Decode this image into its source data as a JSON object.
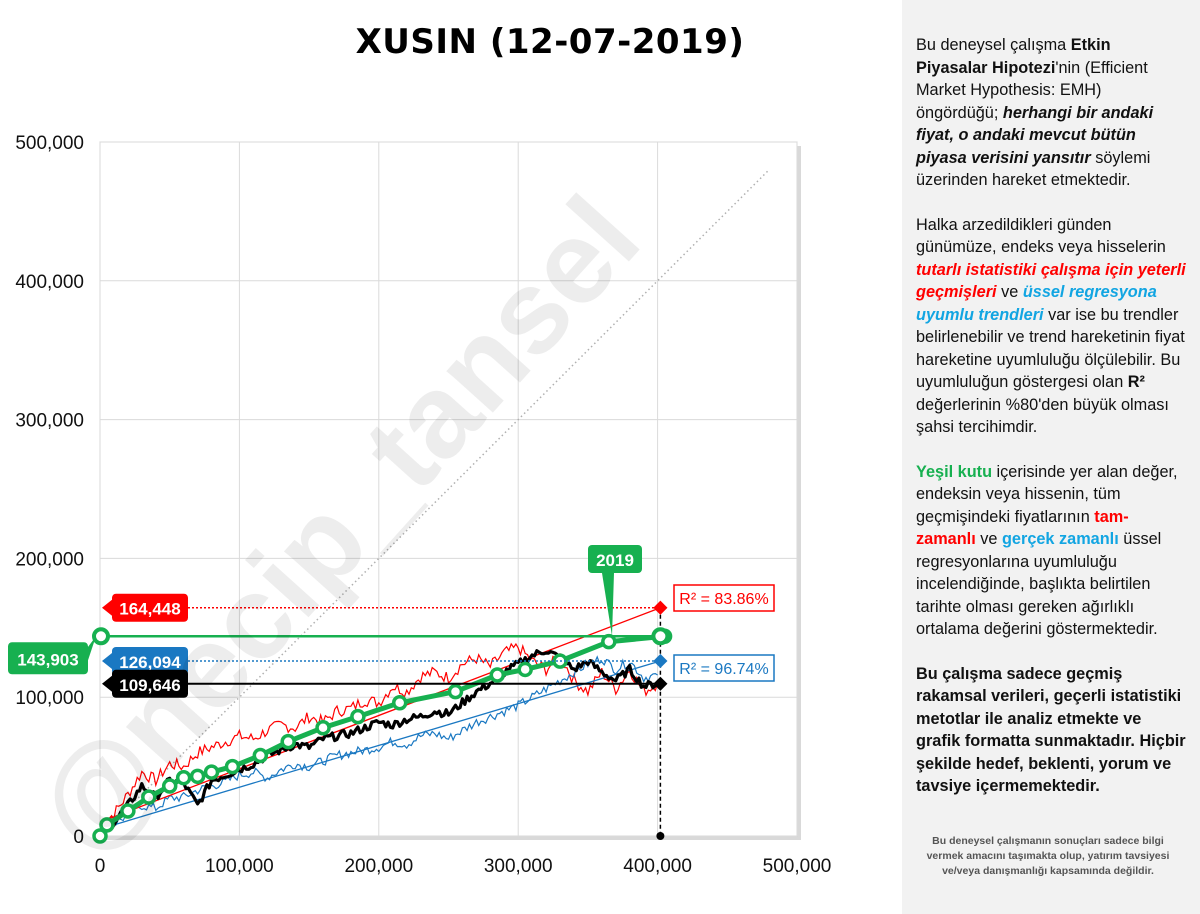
{
  "chart_data": {
    "type": "line",
    "title": "XUSIN (12-07-2019)",
    "x_ticks": [
      "0",
      "100,000",
      "200,000",
      "300,000",
      "400,000",
      "500,000"
    ],
    "y_ticks": [
      "0",
      "100,000",
      "200,000",
      "300,000",
      "400,000",
      "500,000"
    ],
    "xlim": [
      0,
      500000
    ],
    "ylim": [
      0,
      500000
    ],
    "grid": true,
    "reference_line": {
      "from": [
        0,
        0
      ],
      "to": [
        480000,
        480000
      ],
      "style": "dotted"
    },
    "series": [
      {
        "color": "#ff0000",
        "points": [
          [
            0,
            8000
          ],
          [
            10000,
            16000
          ],
          [
            20000,
            30000
          ],
          [
            30000,
            46000
          ],
          [
            40000,
            40000
          ],
          [
            50000,
            52000
          ],
          [
            60000,
            50000
          ],
          [
            70000,
            60000
          ],
          [
            80000,
            64000
          ],
          [
            90000,
            68000
          ],
          [
            100000,
            72000
          ],
          [
            110000,
            70000
          ],
          [
            120000,
            76000
          ],
          [
            130000,
            80000
          ],
          [
            140000,
            78000
          ],
          [
            150000,
            86000
          ],
          [
            160000,
            82000
          ],
          [
            170000,
            90000
          ],
          [
            180000,
            92000
          ],
          [
            190000,
            98000
          ],
          [
            200000,
            96000
          ],
          [
            210000,
            108000
          ],
          [
            220000,
            104000
          ],
          [
            230000,
            115000
          ],
          [
            240000,
            118000
          ],
          [
            250000,
            114000
          ],
          [
            260000,
            124000
          ],
          [
            270000,
            128000
          ],
          [
            280000,
            122000
          ],
          [
            290000,
            132000
          ],
          [
            300000,
            136000
          ],
          [
            310000,
            126000
          ],
          [
            320000,
            120000
          ],
          [
            330000,
            130000
          ],
          [
            340000,
            112000
          ],
          [
            350000,
            104000
          ],
          [
            360000,
            118000
          ],
          [
            370000,
            106000
          ],
          [
            380000,
            120000
          ],
          [
            390000,
            104000
          ],
          [
            400000,
            110000
          ]
        ]
      },
      {
        "color": "#1a78c2",
        "points": [
          [
            0,
            3000
          ],
          [
            10000,
            9000
          ],
          [
            20000,
            15000
          ],
          [
            30000,
            22000
          ],
          [
            40000,
            20000
          ],
          [
            50000,
            27000
          ],
          [
            60000,
            28000
          ],
          [
            70000,
            33000
          ],
          [
            80000,
            36000
          ],
          [
            90000,
            39000
          ],
          [
            100000,
            44000
          ],
          [
            110000,
            46000
          ],
          [
            120000,
            42000
          ],
          [
            130000,
            48000
          ],
          [
            140000,
            52000
          ],
          [
            150000,
            50000
          ],
          [
            160000,
            54000
          ],
          [
            170000,
            58000
          ],
          [
            180000,
            60000
          ],
          [
            190000,
            62000
          ],
          [
            200000,
            64000
          ],
          [
            210000,
            68000
          ],
          [
            220000,
            66000
          ],
          [
            230000,
            72000
          ],
          [
            240000,
            74000
          ],
          [
            250000,
            70000
          ],
          [
            260000,
            76000
          ],
          [
            270000,
            82000
          ],
          [
            280000,
            86000
          ],
          [
            290000,
            90000
          ],
          [
            300000,
            94000
          ],
          [
            310000,
            100000
          ],
          [
            320000,
            106000
          ],
          [
            330000,
            112000
          ],
          [
            340000,
            118000
          ],
          [
            350000,
            124000
          ],
          [
            360000,
            128000
          ],
          [
            370000,
            120000
          ],
          [
            380000,
            126000
          ],
          [
            390000,
            114000
          ],
          [
            400000,
            116000
          ]
        ]
      },
      {
        "color": "#000000",
        "points": [
          [
            0,
            2000
          ],
          [
            10000,
            10000
          ],
          [
            20000,
            22000
          ],
          [
            30000,
            36000
          ],
          [
            40000,
            28000
          ],
          [
            50000,
            40000
          ],
          [
            60000,
            38000
          ],
          [
            70000,
            22000
          ],
          [
            80000,
            40000
          ],
          [
            90000,
            44000
          ],
          [
            100000,
            48000
          ],
          [
            110000,
            52000
          ],
          [
            120000,
            58000
          ],
          [
            130000,
            62000
          ],
          [
            140000,
            66000
          ],
          [
            150000,
            64000
          ],
          [
            160000,
            70000
          ],
          [
            170000,
            72000
          ],
          [
            180000,
            74000
          ],
          [
            190000,
            78000
          ],
          [
            200000,
            82000
          ],
          [
            210000,
            80000
          ],
          [
            220000,
            84000
          ],
          [
            230000,
            86000
          ],
          [
            240000,
            90000
          ],
          [
            250000,
            88000
          ],
          [
            260000,
            96000
          ],
          [
            270000,
            104000
          ],
          [
            280000,
            110000
          ],
          [
            290000,
            118000
          ],
          [
            300000,
            124000
          ],
          [
            310000,
            130000
          ],
          [
            320000,
            134000
          ],
          [
            330000,
            128000
          ],
          [
            340000,
            120000
          ],
          [
            350000,
            126000
          ],
          [
            360000,
            118000
          ],
          [
            370000,
            112000
          ],
          [
            380000,
            120000
          ],
          [
            390000,
            108000
          ],
          [
            400000,
            109646
          ]
        ]
      },
      {
        "color": "#17b050",
        "markers": true,
        "points": [
          [
            0,
            0
          ],
          [
            5000,
            8000
          ],
          [
            20000,
            18000
          ],
          [
            35000,
            28000
          ],
          [
            50000,
            36000
          ],
          [
            60000,
            42000
          ],
          [
            70000,
            43000
          ],
          [
            80000,
            46000
          ],
          [
            95000,
            50000
          ],
          [
            115000,
            58000
          ],
          [
            135000,
            68000
          ],
          [
            160000,
            78000
          ],
          [
            185000,
            86000
          ],
          [
            215000,
            96000
          ],
          [
            255000,
            104000
          ],
          [
            285000,
            116000
          ],
          [
            305000,
            120000
          ],
          [
            330000,
            126000
          ],
          [
            365000,
            140000
          ],
          [
            405000,
            143903
          ]
        ]
      }
    ],
    "trendlines": [
      {
        "color": "#ff0000",
        "from": [
          0,
          10000
        ],
        "to": [
          402000,
          164448
        ],
        "label": "R² = 83.86%"
      },
      {
        "color": "#1a78c2",
        "from": [
          0,
          5000
        ],
        "to": [
          402000,
          126094
        ],
        "label": "R² = 96.74%"
      }
    ],
    "callouts": {
      "red_value": "164,448",
      "blue_value": "126,094",
      "black_value": "109,646",
      "green_value": "143,903",
      "year_label": "2019"
    },
    "watermark": "@necip_tansel"
  },
  "colors": {
    "red": "#ff0000",
    "blue": "#1a78c2",
    "green": "#17b050",
    "black": "#000000"
  },
  "panel": {
    "p1": {
      "a": "Bu deneysel çalışma ",
      "b": "Etkin Piyasalar Hipotezi",
      "c": "'nin (Efficient Market Hypothesis: EMH) öngördüğü; ",
      "d": "herhangi bir andaki fiyat, o andaki mevcut bütün piyasa verisini yansıtır",
      "e": "  söylemi üzerinden hareket etmektedir."
    },
    "p2": {
      "a": "Halka arzedildikleri günden günümüze, endeks veya hisselerin ",
      "b": "tutarlı istatistiki çalışma için yeterli geçmişleri",
      "c": " ve ",
      "d": "üssel regresyona uyumlu trendleri",
      "e": " var ise bu trendler belirlenebilir ve trend hareketinin fiyat hareketine uyumluluğu ölçülebilir. Bu uyumluluğun göstergesi olan ",
      "f": "R²",
      "g": " değerlerinin %80'den büyük olması şahsi tercihimdir."
    },
    "p3": {
      "a": "Yeşil kutu",
      "b": " içerisinde yer alan değer, endeksin veya hissenin, tüm geçmişindeki fiyatlarının ",
      "c": "tam-zamanlı",
      "d": " ve ",
      "e": "gerçek zamanlı",
      "f": " üssel regresyonlarına uyumluluğu incelendiğinde, başlıkta belirtilen tarihte olması gereken ağırlıklı ortalama değerini göstermektedir."
    },
    "p4": "Bu çalışma sadece geçmiş rakamsal verileri, geçerli istatistiki metotlar ile  analiz etmekte ve grafik formatta sunmaktadır. Hiçbir şekilde hedef, beklenti, yorum ve tavsiye içermemektedir.",
    "disclaimer": "Bu deneysel çalışmanın sonuçları sadece bilgi vermek amacını taşımakta olup, yatırım tavsiyesi ve/veya danışmanlığı kapsamında değildir."
  }
}
